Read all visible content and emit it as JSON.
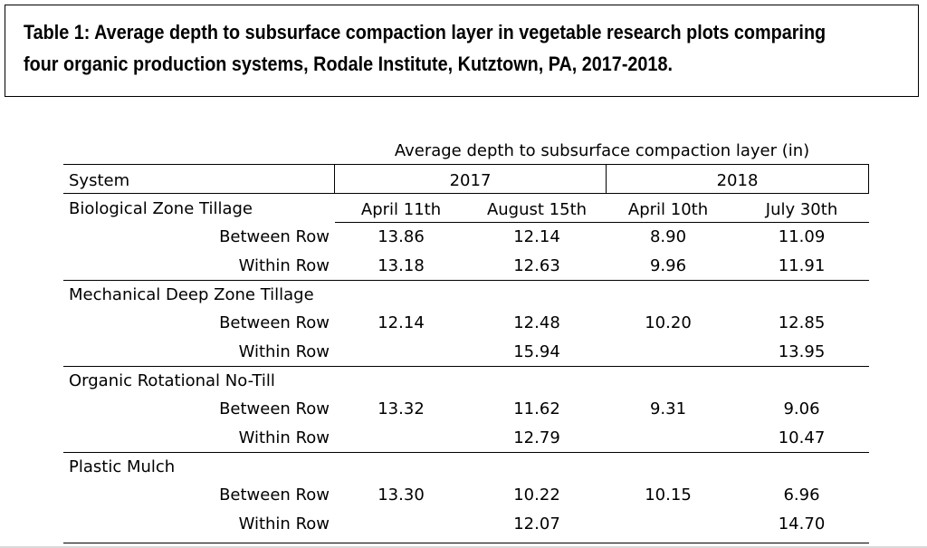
{
  "title": "Table 1: Average depth to subsurface compaction layer in vegetable research plots comparing four organic production systems, Rodale Institute, Kutztown, PA, 2017-2018.",
  "chart_data": {
    "type": "table",
    "super_header": "Average depth to subsurface compaction layer (in)",
    "system_header": "System",
    "years": [
      {
        "label": "2017",
        "dates": [
          "April 11th",
          "August 15th"
        ]
      },
      {
        "label": "2018",
        "dates": [
          "April 10th",
          "July 30th"
        ]
      }
    ],
    "systems": [
      {
        "name": "Biological Zone Tillage",
        "rows": [
          {
            "label": "Between Row",
            "values": [
              "13.86",
              "12.14",
              "8.90",
              "11.09"
            ]
          },
          {
            "label": "Within Row",
            "values": [
              "13.18",
              "12.63",
              "9.96",
              "11.91"
            ]
          }
        ]
      },
      {
        "name": "Mechanical Deep Zone Tillage",
        "rows": [
          {
            "label": "Between Row",
            "values": [
              "12.14",
              "12.48",
              "10.20",
              "12.85"
            ]
          },
          {
            "label": "Within Row",
            "values": [
              "",
              "15.94",
              "",
              "13.95"
            ]
          }
        ]
      },
      {
        "name": "Organic Rotational No-Till",
        "rows": [
          {
            "label": "Between Row",
            "values": [
              "13.32",
              "11.62",
              "9.31",
              "9.06"
            ]
          },
          {
            "label": "Within Row",
            "values": [
              "",
              "12.79",
              "",
              "10.47"
            ]
          }
        ]
      },
      {
        "name": "Plastic Mulch",
        "rows": [
          {
            "label": "Between Row",
            "values": [
              "13.30",
              "10.22",
              "10.15",
              "6.96"
            ]
          },
          {
            "label": "Within Row",
            "values": [
              "",
              "12.07",
              "",
              "14.70"
            ]
          }
        ]
      }
    ]
  }
}
